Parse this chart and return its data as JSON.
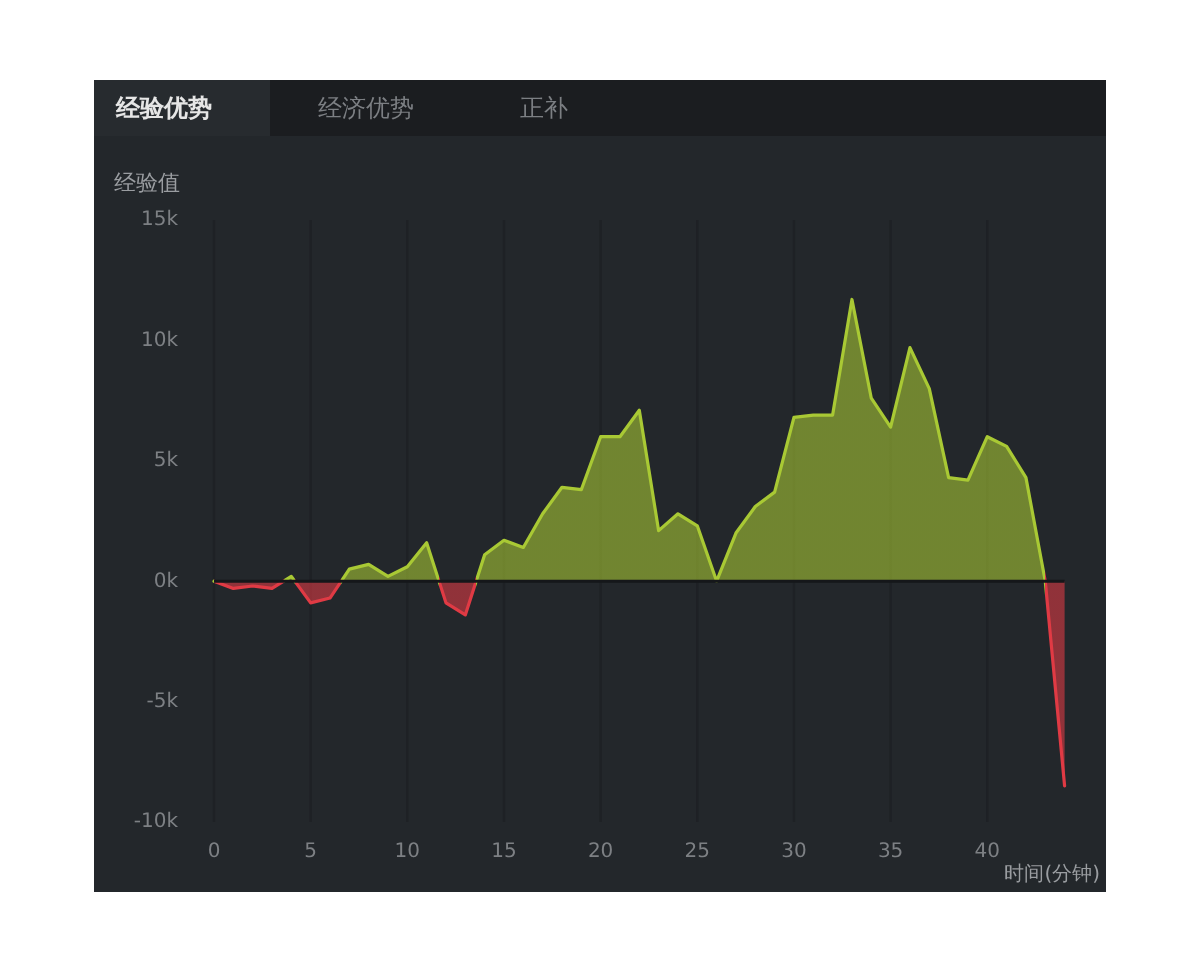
{
  "chart_data": {
    "type": "area",
    "title": "经验优势",
    "annotations": [
      "经济优势",
      "正补"
    ],
    "ylabel": "经验值",
    "xlabel": "时间(分钟)",
    "x": [
      0,
      1,
      2,
      3,
      4,
      5,
      6,
      7,
      8,
      9,
      10,
      11,
      12,
      13,
      14,
      15,
      16,
      17,
      18,
      19,
      20,
      21,
      22,
      23,
      24,
      25,
      26,
      27,
      28,
      29,
      30,
      31,
      32,
      33,
      34,
      35,
      36,
      37,
      38,
      39,
      40,
      41,
      42,
      43,
      44
    ],
    "values": [
      0,
      -300,
      -200,
      -300,
      200,
      -900,
      -700,
      500,
      700,
      200,
      600,
      1600,
      -900,
      -1400,
      1100,
      1700,
      1400,
      2800,
      3900,
      3800,
      6000,
      6000,
      7100,
      2100,
      2800,
      2300,
      0,
      2000,
      3100,
      3700,
      6800,
      6900,
      6900,
      11700,
      7600,
      6400,
      9700,
      8000,
      4300,
      4200,
      6000,
      5600,
      4300,
      0,
      -8500
    ],
    "colors": [
      "#a9c934",
      "#e03a44",
      "#e03a44",
      "#e03a44",
      "#a9c934",
      "#e03a44",
      "#e03a44",
      "#a9c934",
      "#a9c934",
      "#a9c934",
      "#a9c934",
      "#a9c934",
      "#e03a44",
      "#e03a44",
      "#a9c934",
      "#a9c934",
      "#a9c934",
      "#a9c934",
      "#a9c934",
      "#a9c934",
      "#a9c934",
      "#a9c934",
      "#a9c934",
      "#a9c934",
      "#a9c934",
      "#a9c934",
      "#a9c934",
      "#a9c934",
      "#a9c934",
      "#a9c934",
      "#a9c934",
      "#a9c934",
      "#a9c934",
      "#a9c934",
      "#a9c934",
      "#a9c934",
      "#a9c934",
      "#a9c934",
      "#a9c934",
      "#a9c934",
      "#a9c934",
      "#a9c934",
      "#a9c934",
      "#a9c934",
      "#e03a44"
    ],
    "xlim": [
      0,
      44
    ],
    "xticks": [
      0,
      5,
      10,
      15,
      20,
      25,
      30,
      35,
      40
    ],
    "ylim": [
      -10000,
      15000
    ],
    "yticks": [
      {
        "value": -10000,
        "label": "-10k"
      },
      {
        "value": -5000,
        "label": "-5k"
      },
      {
        "value": 0,
        "label": "0k"
      },
      {
        "value": 5000,
        "label": "5k"
      },
      {
        "value": 10000,
        "label": "10k"
      },
      {
        "value": 15000,
        "label": "15k"
      }
    ],
    "grid": "x"
  }
}
